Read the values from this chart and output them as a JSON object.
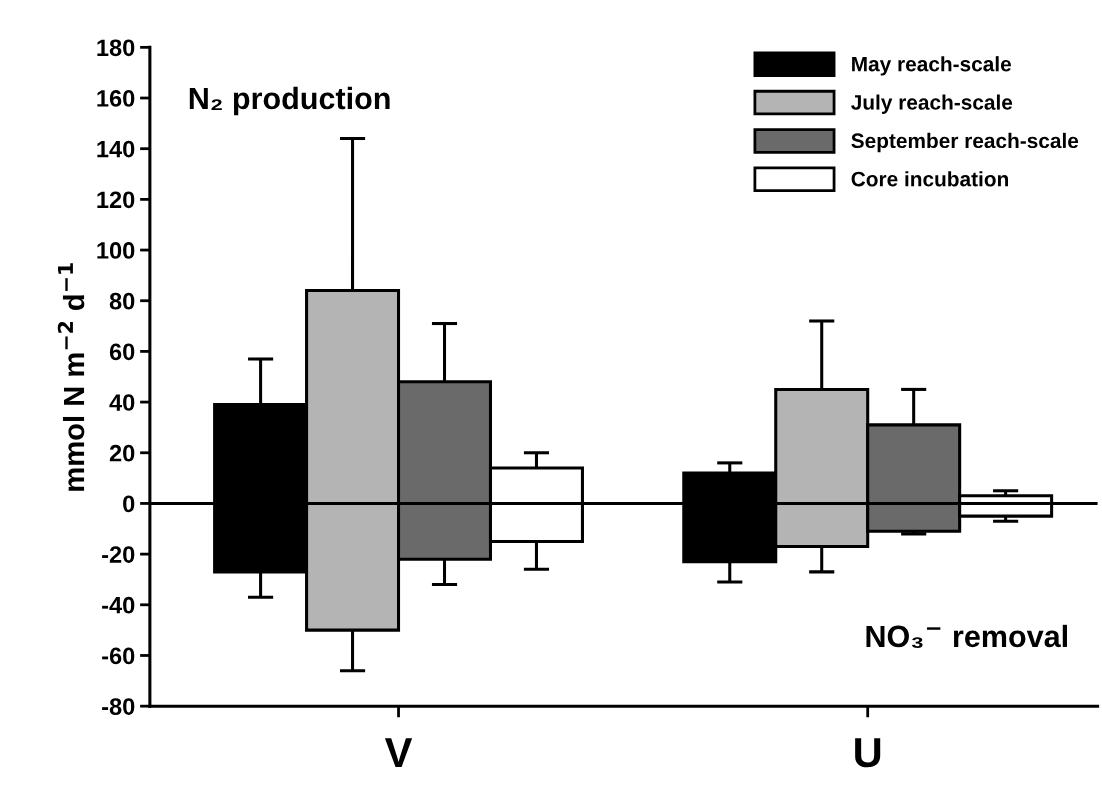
{
  "chart_data": {
    "type": "bar",
    "ylabel": "mmol N m$^{−2}$ d$^{−1}$",
    "annotations": [
      "N₂ production",
      "NO₃$^{−}$ removal"
    ],
    "categories": [
      "V",
      "U"
    ],
    "series": [
      {
        "name": "May reach-scale",
        "color": "#000000",
        "base": [
          -27,
          -23
        ],
        "values": [
          66,
          35
        ],
        "errors": [
          [
            -37,
            57
          ],
          [
            -31,
            16
          ]
        ]
      },
      {
        "name": "July reach-scale",
        "color": "#b4b4b4",
        "base": [
          -50,
          -17
        ],
        "values": [
          134,
          62
        ],
        "errors": [
          [
            -66,
            144
          ],
          [
            -27,
            72
          ]
        ]
      },
      {
        "name": "September reach-scale",
        "color": "#6a6a6a",
        "base": [
          -22,
          -11
        ],
        "values": [
          70,
          42
        ],
        "errors": [
          [
            -32,
            71
          ],
          [
            -12,
            45
          ]
        ]
      },
      {
        "name": "Core incubation",
        "color": "#ffffff",
        "base": [
          -15,
          -5
        ],
        "values": [
          29,
          8
        ],
        "errors": [
          [
            -26,
            20
          ],
          [
            -7,
            5
          ]
        ]
      }
    ],
    "ylim": [
      -80,
      180
    ],
    "yticks": [
      -80,
      -60,
      -40,
      -20,
      0,
      20,
      40,
      60,
      80,
      100,
      120,
      140,
      160,
      180
    ],
    "ref_lines": [
      {
        "axis": "y",
        "value": 0,
        "color": "#000000"
      }
    ],
    "grid": false,
    "legend": "top right"
  }
}
